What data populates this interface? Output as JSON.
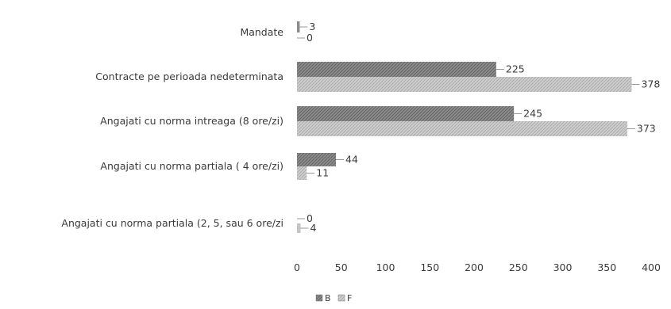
{
  "chart_data": {
    "type": "bar",
    "orientation": "horizontal",
    "categories": [
      "Mandate",
      "Contracte pe perioada nedeterminata",
      "Angajati cu norma intreaga (8 ore/zi)",
      "Angajati cu norma partiala ( 4 ore/zi)",
      "Angajati cu norma partiala (2, 5, sau 6 ore/zi"
    ],
    "series": [
      {
        "name": "B",
        "values": [
          3,
          225,
          245,
          44,
          0
        ],
        "color": "#8c8c8c"
      },
      {
        "name": "F",
        "values": [
          0,
          378,
          373,
          11,
          4
        ],
        "color": "#c4c4c4"
      }
    ],
    "xlim": [
      0,
      400
    ],
    "xticks": [
      0,
      50,
      100,
      150,
      200,
      250,
      300,
      350,
      400
    ],
    "grid": false,
    "legend": "bottom"
  }
}
